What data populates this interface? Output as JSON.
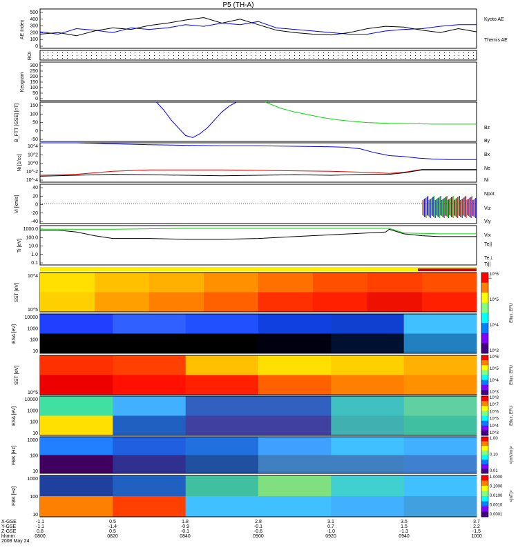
{
  "title": "P5 (TH-A)",
  "orbit": {
    "rows": [
      "X-GSE",
      "Y-GSE",
      "Z-GSE",
      "hhmm",
      "2008 May 24"
    ],
    "columns": [
      {
        "x": "-1.1",
        "y": "-1.1",
        "z": "0.8",
        "t": "0800"
      },
      {
        "x": "0.5",
        "y": "-1.4",
        "z": "0.5",
        "t": "0820"
      },
      {
        "x": "1.8",
        "y": "-0.9",
        "z": "-0.1",
        "t": "0840"
      },
      {
        "x": "2.8",
        "y": "-0.1",
        "z": "-0.6",
        "t": "0900"
      },
      {
        "x": "3.1",
        "y": "0.7",
        "z": "-1.0",
        "t": "0920"
      },
      {
        "x": "3.5",
        "y": "1.5",
        "z": "-1.3",
        "t": "0940"
      },
      {
        "x": "3.7",
        "y": "2.2",
        "z": "-1.5",
        "t": "1000"
      }
    ]
  },
  "colors": {
    "blue": "#0000ff",
    "red": "#dd0000",
    "green": "#00dd00",
    "black": "#000000"
  },
  "chart_data": [
    {
      "type": "line",
      "ylabel": "AE Index",
      "yticks": [
        "0",
        "100",
        "200",
        "300",
        "400",
        "500"
      ],
      "ylim": [
        0,
        500
      ],
      "legend": [
        {
          "label": "Kyoto AE",
          "color": "#0000ff"
        },
        {
          "label": "Themis AE",
          "color": "#000000"
        }
      ],
      "series": [
        {
          "name": "Kyoto AE",
          "color": "#0000ff",
          "t": [
            0,
            5,
            10,
            15,
            20,
            25,
            30,
            35,
            40,
            45,
            50,
            55,
            60,
            65,
            70,
            75,
            80,
            85,
            90,
            95,
            100,
            105,
            110,
            115,
            120
          ],
          "values": [
            210,
            180,
            250,
            230,
            200,
            260,
            240,
            260,
            300,
            280,
            320,
            300,
            340,
            260,
            240,
            220,
            200,
            180,
            180,
            220,
            240,
            250,
            280,
            300,
            300
          ]
        },
        {
          "name": "Themis AE",
          "color": "#000000",
          "t": [
            0,
            5,
            10,
            15,
            20,
            25,
            30,
            35,
            40,
            45,
            50,
            55,
            60,
            65,
            70,
            75,
            80,
            85,
            90,
            95,
            100,
            105,
            110,
            115,
            120
          ],
          "values": [
            180,
            200,
            160,
            220,
            260,
            240,
            290,
            320,
            360,
            390,
            320,
            370,
            300,
            230,
            200,
            180,
            170,
            200,
            250,
            280,
            270,
            230,
            200,
            250,
            210
          ]
        }
      ]
    },
    {
      "type": "table",
      "ylabel": "ROI"
    },
    {
      "type": "line",
      "ylabel": "Keogram",
      "yticks": [
        "0",
        "50",
        "100",
        "150",
        "200",
        "250",
        "300"
      ],
      "ylim": [
        0,
        300
      ]
    },
    {
      "type": "line",
      "ylabel": "B_FTT [GSE] [nT]",
      "yticks": [
        "-50",
        "0",
        "50",
        "100",
        "150"
      ],
      "ylim": [
        -50,
        150
      ],
      "legend": [
        {
          "label": "Bz",
          "color": "#dd0000"
        },
        {
          "label": "By",
          "color": "#00dd00"
        },
        {
          "label": "Bx",
          "color": "#0000ff"
        }
      ],
      "series": [
        {
          "name": "Bx",
          "color": "#0000ff",
          "t": [
            32,
            34,
            36,
            38,
            40,
            42,
            44,
            46,
            48,
            50,
            52,
            54
          ],
          "values": [
            150,
            110,
            60,
            20,
            -20,
            -30,
            -10,
            20,
            60,
            100,
            130,
            150
          ]
        },
        {
          "name": "By",
          "color": "#00dd00",
          "t": [
            62,
            66,
            70,
            74,
            78,
            82,
            86,
            90,
            96,
            102,
            108,
            114,
            120
          ],
          "values": [
            150,
            120,
            100,
            85,
            70,
            60,
            52,
            46,
            42,
            40,
            38,
            38,
            38
          ]
        }
      ]
    },
    {
      "type": "line",
      "ylabel": "Ni [1/cc]",
      "yticks": [
        "10^-4",
        "10^-2",
        "10^0",
        "10^2",
        "10^4"
      ],
      "ylim": [
        -4,
        4
      ],
      "legend": [
        {
          "label": "Ne",
          "color": "#dd0000"
        },
        {
          "label": "Ni",
          "color": "#000000"
        },
        {
          "label": "Npot",
          "color": "#0000ff"
        }
      ],
      "series": [
        {
          "name": "Npot",
          "color": "#0000ff",
          "t": [
            0,
            10,
            20,
            30,
            40,
            50,
            60,
            70,
            80,
            84,
            88,
            92,
            96,
            100,
            104,
            108,
            112,
            116,
            120
          ],
          "values": [
            4.2,
            4.0,
            3.8,
            3.6,
            3.5,
            3.4,
            3.4,
            3.3,
            3.2,
            3.1,
            2.8,
            2.0,
            1.4,
            1.2,
            0.9,
            0.7,
            0.6,
            0.6,
            0.6
          ]
        },
        {
          "name": "Ne",
          "color": "#dd0000",
          "t": [
            0,
            10,
            20,
            30,
            40,
            50,
            60,
            70,
            80,
            90,
            96,
            100,
            105,
            110,
            120
          ],
          "values": [
            -2.6,
            -2.4,
            -1.8,
            -1.5,
            -1.5,
            -1.5,
            -1.6,
            -1.7,
            -1.8,
            -2.0,
            -2.2,
            -2.0,
            -1.4,
            -1.4,
            -1.4
          ]
        },
        {
          "name": "Ni",
          "color": "#000000",
          "t": [
            0,
            10,
            20,
            30,
            40,
            50,
            60,
            70,
            80,
            90,
            96,
            100,
            105,
            110,
            120
          ],
          "values": [
            -2.8,
            -2.6,
            -2.4,
            -2.5,
            -2.6,
            -2.7,
            -2.6,
            -2.5,
            -2.6,
            -2.4,
            -2.4,
            -2.1,
            -1.5,
            -1.5,
            -1.5
          ]
        }
      ]
    },
    {
      "type": "line",
      "ylabel": "Vi [km/s]",
      "yticks": [
        "-40",
        "-20",
        "0",
        "20",
        "40"
      ],
      "ylim": [
        -50,
        50
      ],
      "legend": [
        {
          "label": "Viz",
          "color": "#dd0000"
        },
        {
          "label": "Viy",
          "color": "#00dd00"
        },
        {
          "label": "Vix",
          "color": "#0000ff"
        }
      ]
    },
    {
      "type": "line",
      "ylabel": "Ti [eV]",
      "yticks": [
        "0.1",
        "1.0",
        "10.0",
        "100.0",
        "1000.0"
      ],
      "ylim": [
        -1,
        3.3
      ],
      "legend": [
        {
          "label": "Te||",
          "color": "#000000"
        },
        {
          "label": "Te⊥",
          "color": "#dd0000"
        },
        {
          "label": "Ti||",
          "color": "#00dd00"
        },
        {
          "label": "Ti⊥",
          "color": "#0000ff"
        }
      ],
      "series": [
        {
          "name": "Ti||",
          "color": "#00dd00",
          "t": [
            0,
            20,
            40,
            60,
            80,
            96,
            100,
            110,
            120
          ],
          "values": [
            2.9,
            2.9,
            3.0,
            3.0,
            3.0,
            3.0,
            2.5,
            2.4,
            2.4
          ]
        },
        {
          "name": "Te||",
          "color": "#000000",
          "t": [
            0,
            5,
            10,
            15,
            20,
            30,
            40,
            50,
            60,
            70,
            80,
            90,
            95,
            96,
            100,
            105,
            110,
            120
          ],
          "values": [
            2.8,
            2.8,
            2.6,
            2.2,
            1.9,
            1.9,
            1.8,
            1.8,
            1.9,
            2.1,
            2.3,
            2.5,
            2.6,
            2.9,
            2.4,
            2.2,
            2.1,
            2.1
          ]
        }
      ]
    },
    {
      "type": "heatmap",
      "ylabel": "SST [eV]",
      "yticks": [
        "10^5",
        "10^4"
      ],
      "colorbar_label": "Eflux, EFU",
      "colorbar_ticks": [
        "10^3",
        "10^4",
        "10^5",
        "10^6"
      ]
    },
    {
      "type": "heatmap",
      "ylabel": "ESA [eV]",
      "yticks": [
        "10",
        "100",
        "1000",
        "10000"
      ],
      "colorbar_label": "Eflux, EFU",
      "colorbar_ticks": [
        "10^3",
        "10^4",
        "10^5",
        "10^6",
        "10^7",
        "10^8"
      ]
    },
    {
      "type": "heatmap",
      "ylabel": "SST [eV]",
      "yticks": [
        "10^5"
      ],
      "colorbar_label": "Eflux, EFU",
      "colorbar_ticks": [
        "10^3",
        "10^4",
        "10^5",
        "10^6"
      ]
    },
    {
      "type": "heatmap",
      "ylabel": "ESA [eV]",
      "yticks": [
        "10",
        "100",
        "1000",
        "10000"
      ],
      "colorbar_label": "Eflux, EFU",
      "colorbar_ticks": [
        "10^3",
        "10^4",
        "10^5",
        "10^6",
        "10^7",
        "10^8"
      ]
    },
    {
      "type": "heatmap",
      "ylabel": "FBK [Hz]",
      "yticks": [
        "10",
        "100",
        "1000"
      ],
      "colorbar_label": "<|mV/m|>",
      "colorbar_ticks": [
        "0.01",
        "0.10",
        "1.00"
      ]
    },
    {
      "type": "heatmap",
      "ylabel": "FBK [Hz]",
      "yticks": [
        "10",
        "100",
        "1000"
      ],
      "colorbar_label": "<|nT|>",
      "colorbar_ticks": [
        "0.0001",
        "0.0010",
        "0.0100",
        "0.1000",
        "1.0000"
      ]
    }
  ]
}
